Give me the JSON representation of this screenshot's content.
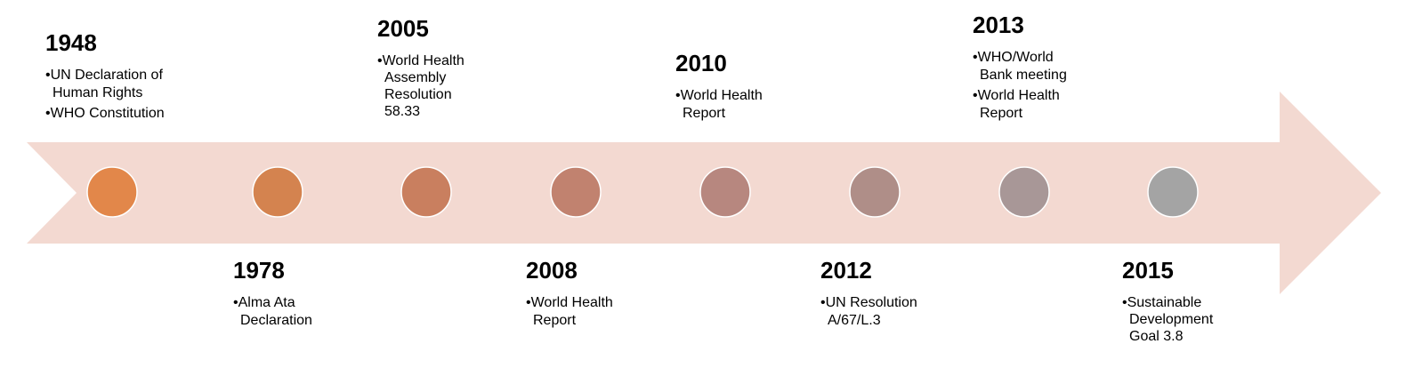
{
  "colors": {
    "arrow_fill": "#f3d9d1",
    "circle_stroke": "#ffffff"
  },
  "events": [
    {
      "year": "1948",
      "items": [
        "UN Declaration of Human Rights",
        "WHO Constitution"
      ],
      "color": "#e2874a"
    },
    {
      "year": "1978",
      "items": [
        "Alma Ata Declaration"
      ],
      "color": "#d4834f"
    },
    {
      "year": "2005",
      "items": [
        "World Health Assembly Resolution 58.33"
      ],
      "color": "#c97f5f"
    },
    {
      "year": "2008",
      "items": [
        "World Health Report"
      ],
      "color": "#c1826f"
    },
    {
      "year": "2010",
      "items": [
        "World Health Report"
      ],
      "color": "#b7877f"
    },
    {
      "year": "2012",
      "items": [
        "UN Resolution A/67/L.3"
      ],
      "color": "#af8e88"
    },
    {
      "year": "2013",
      "items": [
        "WHO/World Bank meeting",
        "World Health Report"
      ],
      "color": "#a89797"
    },
    {
      "year": "2015",
      "items": [
        "Sustainable Development Goal 3.8"
      ],
      "color": "#a4a4a4"
    }
  ]
}
